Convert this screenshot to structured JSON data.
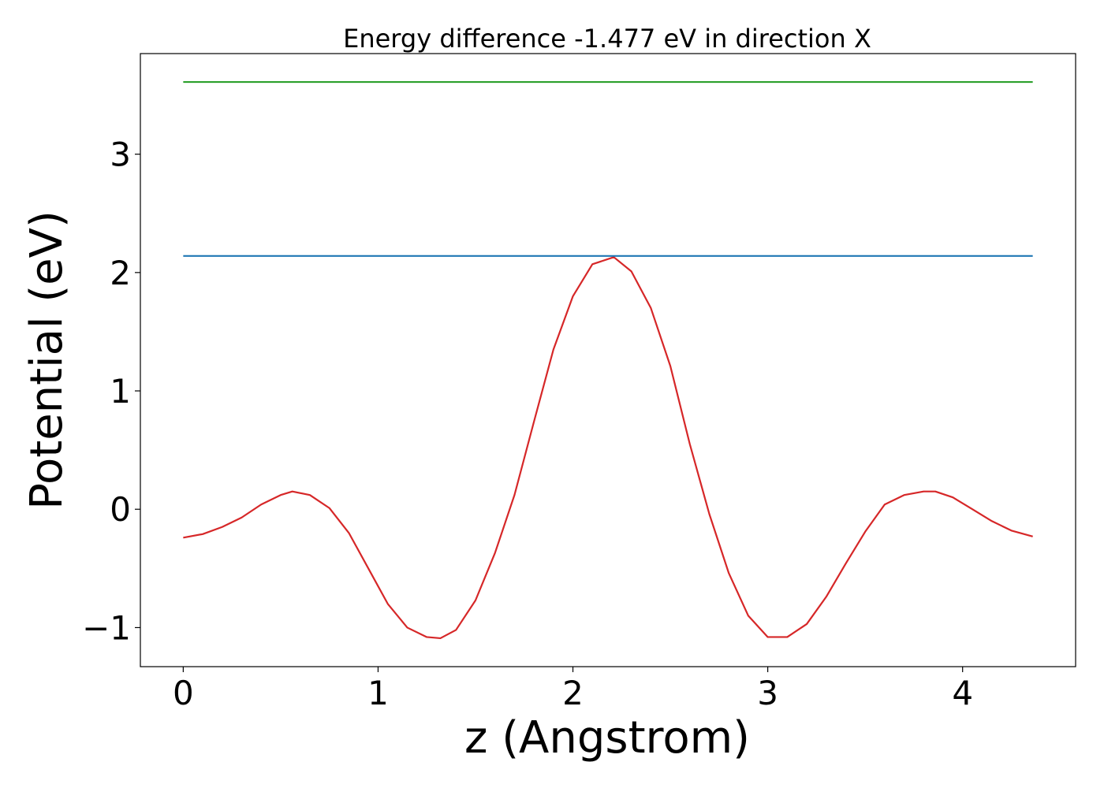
{
  "chart_data": {
    "type": "line",
    "title": "Energy difference -1.477 eV in direction X",
    "xlabel": "z (Angstrom)",
    "ylabel": "Potential (eV)",
    "xlim": [
      -0.22,
      4.58
    ],
    "ylim": [
      -1.33,
      3.85
    ],
    "xticks": [
      0,
      1,
      2,
      3,
      4
    ],
    "xtick_labels": [
      "0",
      "1",
      "2",
      "3",
      "4"
    ],
    "yticks": [
      -1,
      0,
      1,
      2,
      3
    ],
    "ytick_labels": [
      "−1",
      "0",
      "1",
      "2",
      "3"
    ],
    "grid": false,
    "legend": "none",
    "series": [
      {
        "color": "#d62728",
        "x": [
          0.0,
          0.1,
          0.2,
          0.3,
          0.4,
          0.5,
          0.56,
          0.65,
          0.75,
          0.85,
          0.95,
          1.05,
          1.15,
          1.25,
          1.32,
          1.4,
          1.5,
          1.6,
          1.7,
          1.8,
          1.9,
          2.0,
          2.1,
          2.21,
          2.3,
          2.4,
          2.5,
          2.6,
          2.7,
          2.8,
          2.9,
          3.0,
          3.1,
          3.2,
          3.3,
          3.4,
          3.5,
          3.6,
          3.7,
          3.8,
          3.86,
          3.95,
          4.05,
          4.15,
          4.25,
          4.36
        ],
        "y": [
          -0.24,
          -0.21,
          -0.15,
          -0.07,
          0.04,
          0.12,
          0.15,
          0.12,
          0.01,
          -0.2,
          -0.5,
          -0.8,
          -1.0,
          -1.08,
          -1.09,
          -1.02,
          -0.77,
          -0.37,
          0.12,
          0.74,
          1.35,
          1.8,
          2.07,
          2.13,
          2.01,
          1.7,
          1.21,
          0.55,
          -0.04,
          -0.54,
          -0.9,
          -1.08,
          -1.08,
          -0.97,
          -0.74,
          -0.46,
          -0.19,
          0.04,
          0.12,
          0.15,
          0.15,
          0.1,
          0.0,
          -0.1,
          -0.18,
          -0.23
        ]
      },
      {
        "color": "#1f77b4",
        "x": [
          0.0,
          4.36
        ],
        "y": [
          2.14,
          2.14
        ]
      },
      {
        "color": "#2ca02c",
        "x": [
          0.0,
          4.36
        ],
        "y": [
          3.61,
          3.61
        ]
      }
    ]
  }
}
